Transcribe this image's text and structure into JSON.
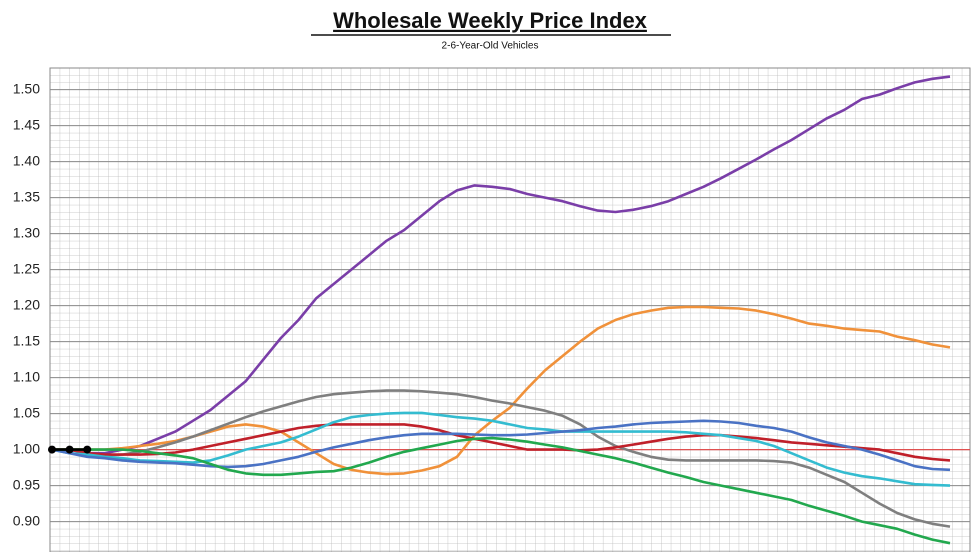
{
  "chart_data": {
    "type": "line",
    "title": "Wholesale Weekly Price Index",
    "subtitle": "2-6-Year-Old Vehicles",
    "ylim": [
      0.86,
      1.53
    ],
    "yticks": [
      {
        "value": 0.9,
        "label": "0.90"
      },
      {
        "value": 0.95,
        "label": "0.95"
      },
      {
        "value": 1.0,
        "label": "1.00"
      },
      {
        "value": 1.05,
        "label": "1.05"
      },
      {
        "value": 1.1,
        "label": "1.10"
      },
      {
        "value": 1.15,
        "label": "1.15"
      },
      {
        "value": 1.2,
        "label": "1.20"
      },
      {
        "value": 1.25,
        "label": "1.25"
      },
      {
        "value": 1.3,
        "label": "1.30"
      },
      {
        "value": 1.35,
        "label": "1.35"
      },
      {
        "value": 1.4,
        "label": "1.40"
      },
      {
        "value": 1.45,
        "label": "1.45"
      },
      {
        "value": 1.5,
        "label": "1.50"
      }
    ],
    "grid": true,
    "reference_line": {
      "value": 1.0,
      "color": "#e05050"
    },
    "series": [
      {
        "color": "#7a3ea8",
        "values": [
          1.0,
          1.0,
          0.995,
          0.995,
          1.0,
          1.005,
          1.015,
          1.025,
          1.04,
          1.055,
          1.075,
          1.095,
          1.125,
          1.155,
          1.18,
          1.21,
          1.23,
          1.25,
          1.27,
          1.29,
          1.305,
          1.325,
          1.345,
          1.36,
          1.367,
          1.365,
          1.362,
          1.355,
          1.35,
          1.345,
          1.338,
          1.332,
          1.33,
          1.333,
          1.338,
          1.345,
          1.355,
          1.365,
          1.377,
          1.39,
          1.403,
          1.417,
          1.43,
          1.445,
          1.46,
          1.472,
          1.487,
          1.493,
          1.502,
          1.51,
          1.515,
          1.518
        ]
      },
      {
        "color": "#f0913a",
        "values": [
          1.0,
          1.0,
          1.0,
          1.0,
          1.002,
          1.005,
          1.008,
          1.012,
          1.018,
          1.025,
          1.032,
          1.035,
          1.032,
          1.025,
          1.01,
          0.995,
          0.98,
          0.972,
          0.968,
          0.966,
          0.967,
          0.971,
          0.977,
          0.99,
          1.02,
          1.04,
          1.058,
          1.085,
          1.11,
          1.13,
          1.15,
          1.168,
          1.18,
          1.188,
          1.193,
          1.197,
          1.198,
          1.198,
          1.197,
          1.196,
          1.193,
          1.188,
          1.182,
          1.175,
          1.172,
          1.168,
          1.166,
          1.164,
          1.157,
          1.152,
          1.146,
          1.142
        ]
      },
      {
        "color": "#7f7f7f",
        "values": [
          1.0,
          1.0,
          0.995,
          0.992,
          0.993,
          0.997,
          1.003,
          1.01,
          1.018,
          1.027,
          1.036,
          1.045,
          1.053,
          1.06,
          1.067,
          1.073,
          1.077,
          1.079,
          1.081,
          1.082,
          1.082,
          1.081,
          1.079,
          1.077,
          1.073,
          1.068,
          1.064,
          1.059,
          1.054,
          1.047,
          1.035,
          1.018,
          1.005,
          0.997,
          0.99,
          0.986,
          0.985,
          0.985,
          0.985,
          0.985,
          0.985,
          0.984,
          0.982,
          0.975,
          0.965,
          0.955,
          0.94,
          0.925,
          0.912,
          0.903,
          0.897,
          0.893
        ]
      },
      {
        "color": "#c0202a",
        "values": [
          1.0,
          1.0,
          0.995,
          0.993,
          0.993,
          0.993,
          0.994,
          0.996,
          1.0,
          1.005,
          1.01,
          1.015,
          1.02,
          1.025,
          1.03,
          1.033,
          1.035,
          1.035,
          1.035,
          1.035,
          1.035,
          1.032,
          1.027,
          1.02,
          1.015,
          1.01,
          1.005,
          1.0,
          1.0,
          1.0,
          0.999,
          1.0,
          1.003,
          1.007,
          1.011,
          1.015,
          1.018,
          1.02,
          1.02,
          1.018,
          1.016,
          1.013,
          1.01,
          1.008,
          1.006,
          1.004,
          1.002,
          1.0,
          0.995,
          0.99,
          0.987,
          0.985
        ]
      },
      {
        "color": "#34bcd0",
        "values": [
          1.0,
          0.995,
          0.993,
          0.99,
          0.988,
          0.985,
          0.984,
          0.983,
          0.982,
          0.985,
          0.992,
          1.0,
          1.005,
          1.01,
          1.018,
          1.028,
          1.038,
          1.045,
          1.048,
          1.05,
          1.051,
          1.051,
          1.048,
          1.045,
          1.043,
          1.04,
          1.035,
          1.03,
          1.028,
          1.025,
          1.025,
          1.025,
          1.025,
          1.025,
          1.025,
          1.025,
          1.024,
          1.022,
          1.02,
          1.016,
          1.012,
          1.005,
          0.995,
          0.985,
          0.975,
          0.968,
          0.963,
          0.96,
          0.956,
          0.952,
          0.951,
          0.95
        ]
      },
      {
        "color": "#4a72c4",
        "values": [
          1.0,
          0.995,
          0.99,
          0.988,
          0.985,
          0.983,
          0.982,
          0.981,
          0.979,
          0.977,
          0.976,
          0.977,
          0.98,
          0.985,
          0.99,
          0.997,
          1.003,
          1.008,
          1.013,
          1.017,
          1.02,
          1.022,
          1.022,
          1.022,
          1.021,
          1.02,
          1.02,
          1.021,
          1.023,
          1.025,
          1.027,
          1.03,
          1.032,
          1.035,
          1.037,
          1.038,
          1.039,
          1.04,
          1.039,
          1.037,
          1.033,
          1.03,
          1.025,
          1.017,
          1.01,
          1.005,
          1.0,
          0.993,
          0.985,
          0.977,
          0.973,
          0.972
        ]
      },
      {
        "color": "#22a84e",
        "values": [
          1.0,
          1.0,
          1.0,
          1.0,
          1.0,
          0.998,
          0.995,
          0.992,
          0.988,
          0.98,
          0.972,
          0.967,
          0.965,
          0.965,
          0.967,
          0.969,
          0.97,
          0.975,
          0.982,
          0.99,
          0.997,
          1.002,
          1.007,
          1.012,
          1.015,
          1.016,
          1.014,
          1.011,
          1.007,
          1.003,
          0.998,
          0.993,
          0.988,
          0.982,
          0.975,
          0.968,
          0.962,
          0.955,
          0.95,
          0.945,
          0.94,
          0.935,
          0.93,
          0.922,
          0.915,
          0.908,
          0.9,
          0.895,
          0.89,
          0.882,
          0.875,
          0.87
        ]
      },
      {
        "color": "#000000",
        "markers": true,
        "values": [
          1.0,
          1.0,
          1.0,
          null,
          null,
          null,
          null,
          null,
          null,
          null,
          null,
          null,
          null,
          null,
          null,
          null,
          null,
          null,
          null,
          null,
          null,
          null,
          null,
          null,
          null,
          null,
          null,
          null,
          null,
          null,
          null,
          null,
          null,
          null,
          null,
          null,
          null,
          null,
          null,
          null,
          null,
          null,
          null,
          null,
          null,
          null,
          null,
          null,
          null,
          null,
          null,
          null
        ]
      }
    ]
  }
}
